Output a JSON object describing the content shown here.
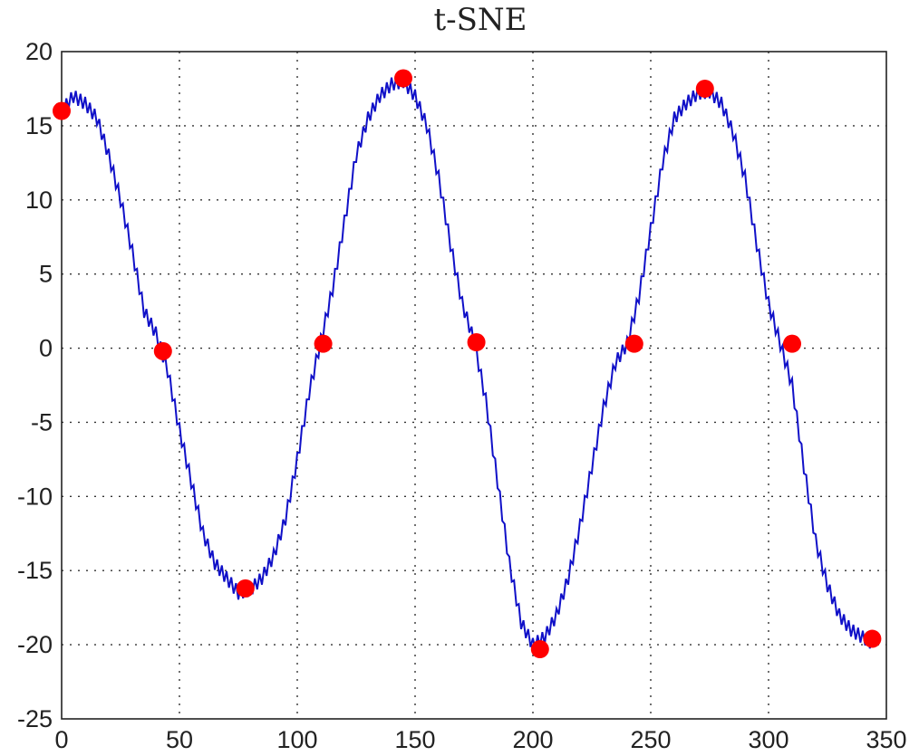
{
  "chart_data": {
    "type": "line",
    "title": "t-SNE",
    "xlabel": "",
    "ylabel": "",
    "xlim": [
      0,
      350
    ],
    "ylim": [
      -25,
      20
    ],
    "xticks": [
      0,
      50,
      100,
      150,
      200,
      250,
      300,
      350
    ],
    "yticks": [
      20,
      15,
      10,
      5,
      0,
      -5,
      -10,
      -15,
      -20,
      -25
    ],
    "grid": true,
    "line": {
      "color": "#1010c8",
      "x": [
        0,
        5,
        10,
        15,
        20,
        25,
        30,
        35,
        40,
        45,
        50,
        55,
        60,
        65,
        70,
        75,
        80,
        85,
        90,
        95,
        100,
        105,
        110,
        115,
        120,
        125,
        130,
        135,
        140,
        145,
        150,
        155,
        160,
        165,
        170,
        175,
        180,
        185,
        190,
        195,
        200,
        205,
        210,
        215,
        220,
        225,
        230,
        235,
        240,
        245,
        250,
        255,
        260,
        265,
        270,
        275,
        280,
        285,
        290,
        295,
        300,
        305,
        310,
        315,
        320,
        325,
        330,
        335,
        340,
        345
      ],
      "y": [
        16.0,
        17.0,
        16.5,
        15.5,
        13.0,
        10.0,
        6.5,
        2.5,
        1.0,
        -1.5,
        -5.5,
        -9.0,
        -12.5,
        -14.5,
        -15.5,
        -16.5,
        -16.3,
        -15.5,
        -14.0,
        -11.5,
        -7.5,
        -3.0,
        0.5,
        4.0,
        8.5,
        13.0,
        15.5,
        17.0,
        17.8,
        18.0,
        17.0,
        15.0,
        11.5,
        7.0,
        3.0,
        0.5,
        -3.5,
        -9.0,
        -14.5,
        -18.5,
        -20.0,
        -19.5,
        -18.0,
        -15.5,
        -12.0,
        -8.0,
        -4.0,
        -1.0,
        0.3,
        3.5,
        8.0,
        12.5,
        15.5,
        16.5,
        17.2,
        17.3,
        16.5,
        14.5,
        11.5,
        7.0,
        3.0,
        0.3,
        -2.5,
        -8.0,
        -13.0,
        -16.0,
        -18.0,
        -19.0,
        -19.5,
        -20.0
      ]
    },
    "markers": {
      "color": "#ff0000",
      "x": [
        0,
        43,
        78,
        111,
        145,
        176,
        203,
        243,
        273,
        310,
        344
      ],
      "y": [
        16.0,
        -0.2,
        -16.2,
        0.3,
        18.2,
        0.4,
        -20.3,
        0.3,
        17.5,
        0.3,
        -19.6
      ]
    }
  }
}
